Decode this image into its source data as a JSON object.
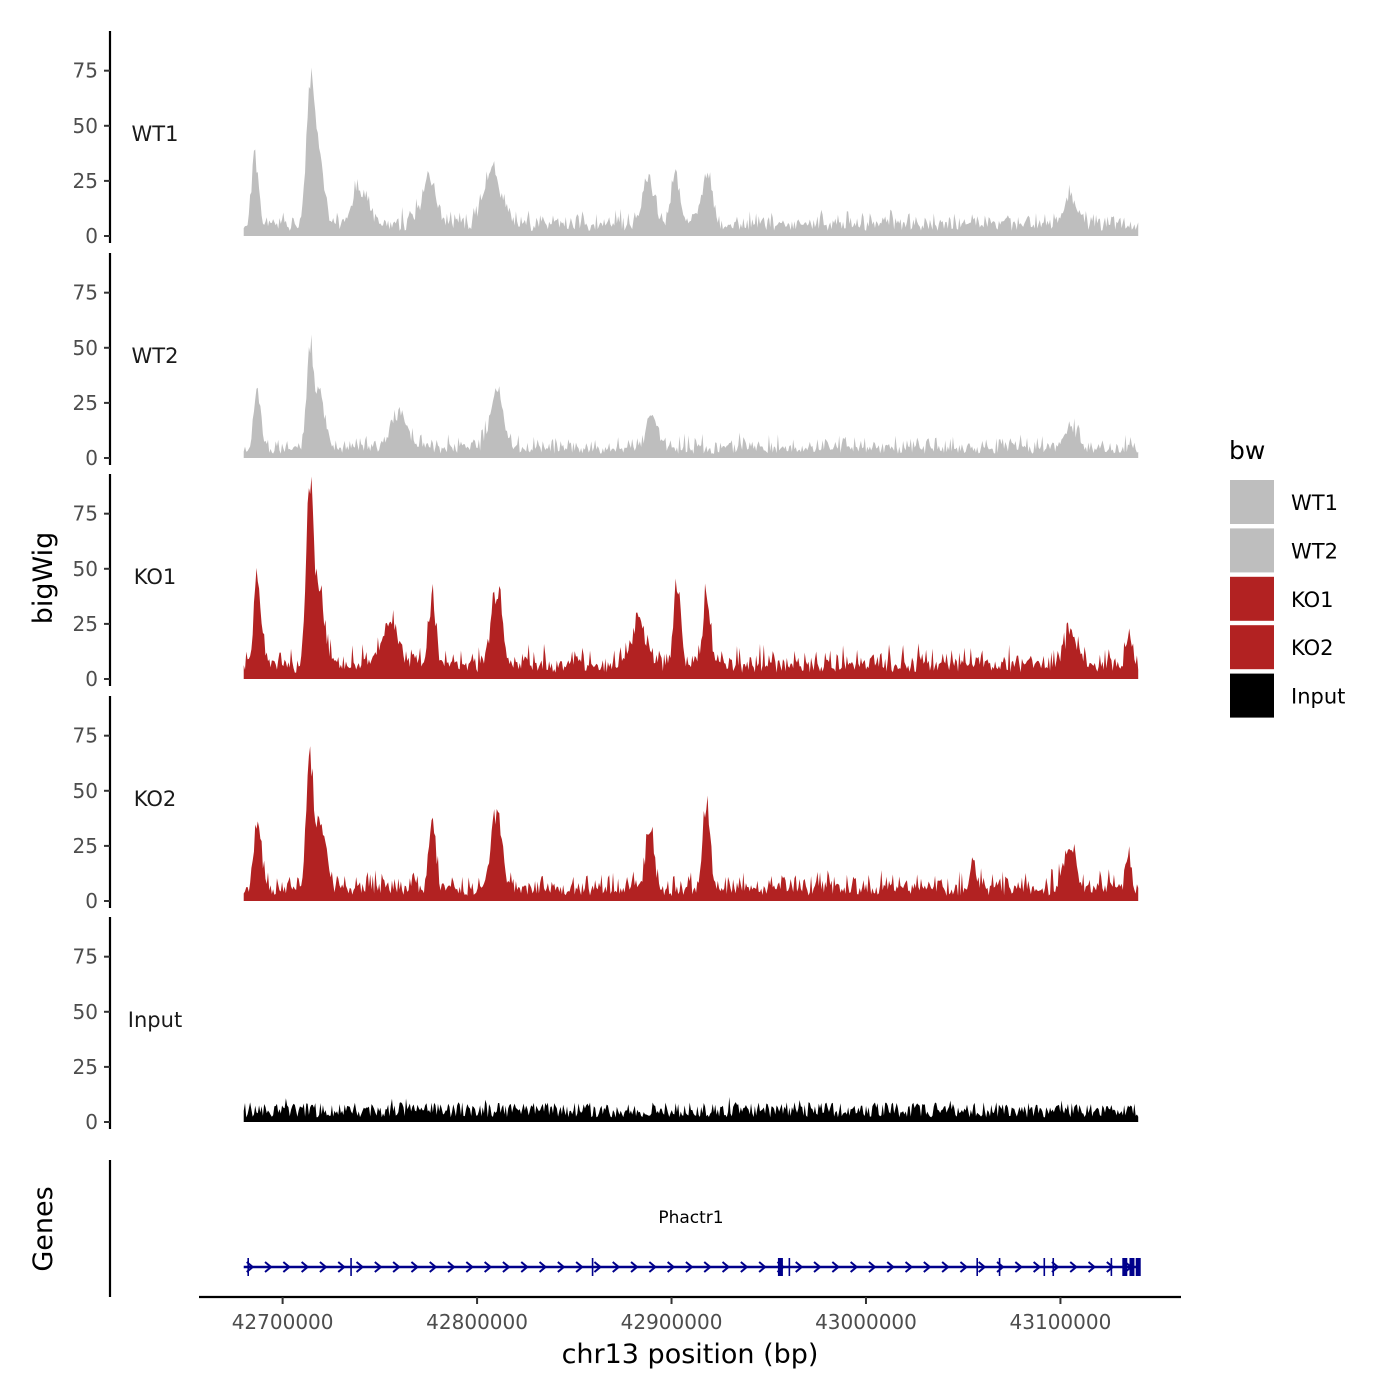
{
  "chart_data": {
    "type": "area",
    "title": "",
    "ylabel": "bigWig",
    "genes_label": "Genes",
    "xlabel": "chr13 position (bp)",
    "x_range": [
      42680000,
      43140000
    ],
    "x_axis_limits": [
      42657000,
      43162000
    ],
    "x_ticks": [
      42700000,
      42800000,
      42900000,
      43000000,
      43100000
    ],
    "x_tick_labels": [
      "42700000",
      "42800000",
      "42900000",
      "43000000",
      "43100000"
    ],
    "ylim": [
      0,
      93
    ],
    "y_ticks": [
      0,
      25,
      50,
      75
    ],
    "y_tick_labels": [
      "0",
      "25",
      "50",
      "75"
    ],
    "legend": {
      "title": "bw",
      "position": "right",
      "entries": [
        {
          "label": "WT1",
          "color": "#bebebe"
        },
        {
          "label": "WT2",
          "color": "#bebebe"
        },
        {
          "label": "KO1",
          "color": "#b22222"
        },
        {
          "label": "KO2",
          "color": "#b22222"
        },
        {
          "label": "Input",
          "color": "#000000"
        }
      ]
    },
    "tracks": [
      {
        "name": "WT1",
        "color": "#bebebe",
        "baseline": 5,
        "noise": 3,
        "seed": 11,
        "peaks": [
          {
            "x": 42686000,
            "height": 34,
            "width": 2500
          },
          {
            "x": 42714000,
            "height": 59,
            "width": 2500
          },
          {
            "x": 42718000,
            "height": 38,
            "width": 4000
          },
          {
            "x": 42740000,
            "height": 17,
            "width": 6000
          },
          {
            "x": 42775000,
            "height": 22,
            "width": 5000
          },
          {
            "x": 42808000,
            "height": 27,
            "width": 6000
          },
          {
            "x": 42888000,
            "height": 24,
            "width": 4000
          },
          {
            "x": 42902000,
            "height": 27,
            "width": 3000
          },
          {
            "x": 42918000,
            "height": 24,
            "width": 4000
          },
          {
            "x": 43105000,
            "height": 14,
            "width": 5000
          }
        ]
      },
      {
        "name": "WT2",
        "color": "#bebebe",
        "baseline": 4,
        "noise": 3,
        "seed": 23,
        "peaks": [
          {
            "x": 42687000,
            "height": 29,
            "width": 2500
          },
          {
            "x": 42714000,
            "height": 45,
            "width": 2500
          },
          {
            "x": 42719000,
            "height": 26,
            "width": 4000
          },
          {
            "x": 42760000,
            "height": 17,
            "width": 6000
          },
          {
            "x": 42810000,
            "height": 27,
            "width": 5000
          },
          {
            "x": 42890000,
            "height": 17,
            "width": 4000
          },
          {
            "x": 43105000,
            "height": 10,
            "width": 5000
          }
        ]
      },
      {
        "name": "KO1",
        "color": "#b22222",
        "baseline": 6,
        "noise": 4,
        "seed": 37,
        "peaks": [
          {
            "x": 42687000,
            "height": 45,
            "width": 2500
          },
          {
            "x": 42714000,
            "height": 86,
            "width": 2500
          },
          {
            "x": 42719000,
            "height": 40,
            "width": 3500
          },
          {
            "x": 42755000,
            "height": 22,
            "width": 6000
          },
          {
            "x": 42777000,
            "height": 35,
            "width": 2500
          },
          {
            "x": 42810000,
            "height": 37,
            "width": 4000
          },
          {
            "x": 42883000,
            "height": 22,
            "width": 5000
          },
          {
            "x": 42903000,
            "height": 35,
            "width": 2500
          },
          {
            "x": 42918000,
            "height": 36,
            "width": 2500
          },
          {
            "x": 43105000,
            "height": 16,
            "width": 5000
          },
          {
            "x": 43135000,
            "height": 15,
            "width": 2000
          }
        ]
      },
      {
        "name": "KO2",
        "color": "#b22222",
        "baseline": 5,
        "noise": 4,
        "seed": 53,
        "peaks": [
          {
            "x": 42687000,
            "height": 33,
            "width": 2500
          },
          {
            "x": 42714000,
            "height": 67,
            "width": 2500
          },
          {
            "x": 42720000,
            "height": 32,
            "width": 3500
          },
          {
            "x": 42777000,
            "height": 32,
            "width": 2500
          },
          {
            "x": 42810000,
            "height": 38,
            "width": 4000
          },
          {
            "x": 42889000,
            "height": 28,
            "width": 3000
          },
          {
            "x": 42918000,
            "height": 41,
            "width": 2500
          },
          {
            "x": 43055000,
            "height": 16,
            "width": 2000
          },
          {
            "x": 43105000,
            "height": 22,
            "width": 4000
          },
          {
            "x": 43135000,
            "height": 13,
            "width": 2000
          }
        ]
      },
      {
        "name": "Input",
        "color": "#000000",
        "baseline": 4,
        "noise": 7,
        "seed": 71,
        "peaks": []
      }
    ],
    "genes": [
      {
        "name": "Phactr1",
        "start": 42680000,
        "end": 43140000,
        "strand": "+",
        "color": "#00008b"
      }
    ]
  }
}
